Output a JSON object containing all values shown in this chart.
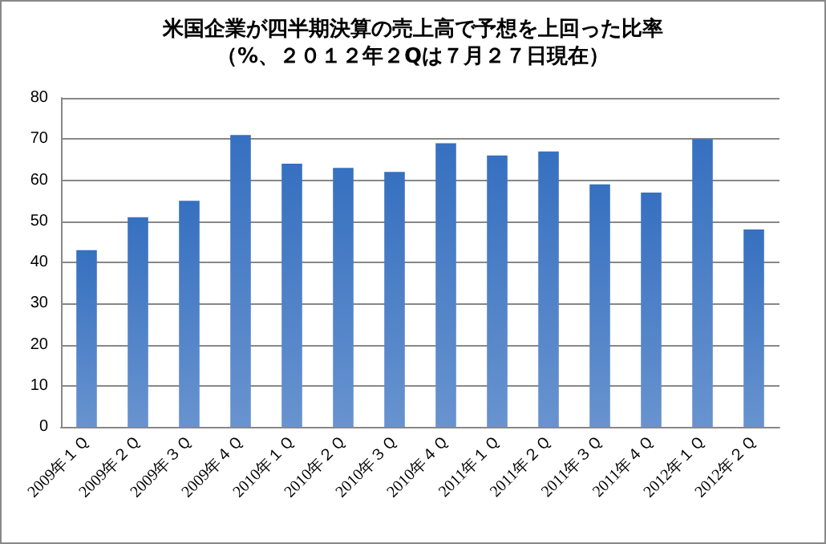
{
  "chart_data": {
    "type": "bar",
    "title": "米国企業が四半期決算の売上高で予想を上回った比率",
    "subtitle": "（%、２０１２年２Qは７月２７日現在）",
    "categories": [
      "2009年１Ｑ",
      "2009年２Ｑ",
      "2009年３Ｑ",
      "2009年４Ｑ",
      "2010年１Ｑ",
      "2010年２Ｑ",
      "2010年３Ｑ",
      "2010年４Ｑ",
      "2011年１Ｑ",
      "2011年２Ｑ",
      "2011年３Ｑ",
      "2011年４Ｑ",
      "2012年１Ｑ",
      "2012年２Ｑ"
    ],
    "values": [
      43,
      51,
      55,
      71,
      64,
      63,
      62,
      69,
      66,
      67,
      59,
      57,
      70,
      48
    ],
    "color": "#3670c0",
    "ylim": [
      0,
      80
    ],
    "yticks": [
      0,
      10,
      20,
      30,
      40,
      50,
      60,
      70,
      80
    ],
    "grid": "y"
  }
}
